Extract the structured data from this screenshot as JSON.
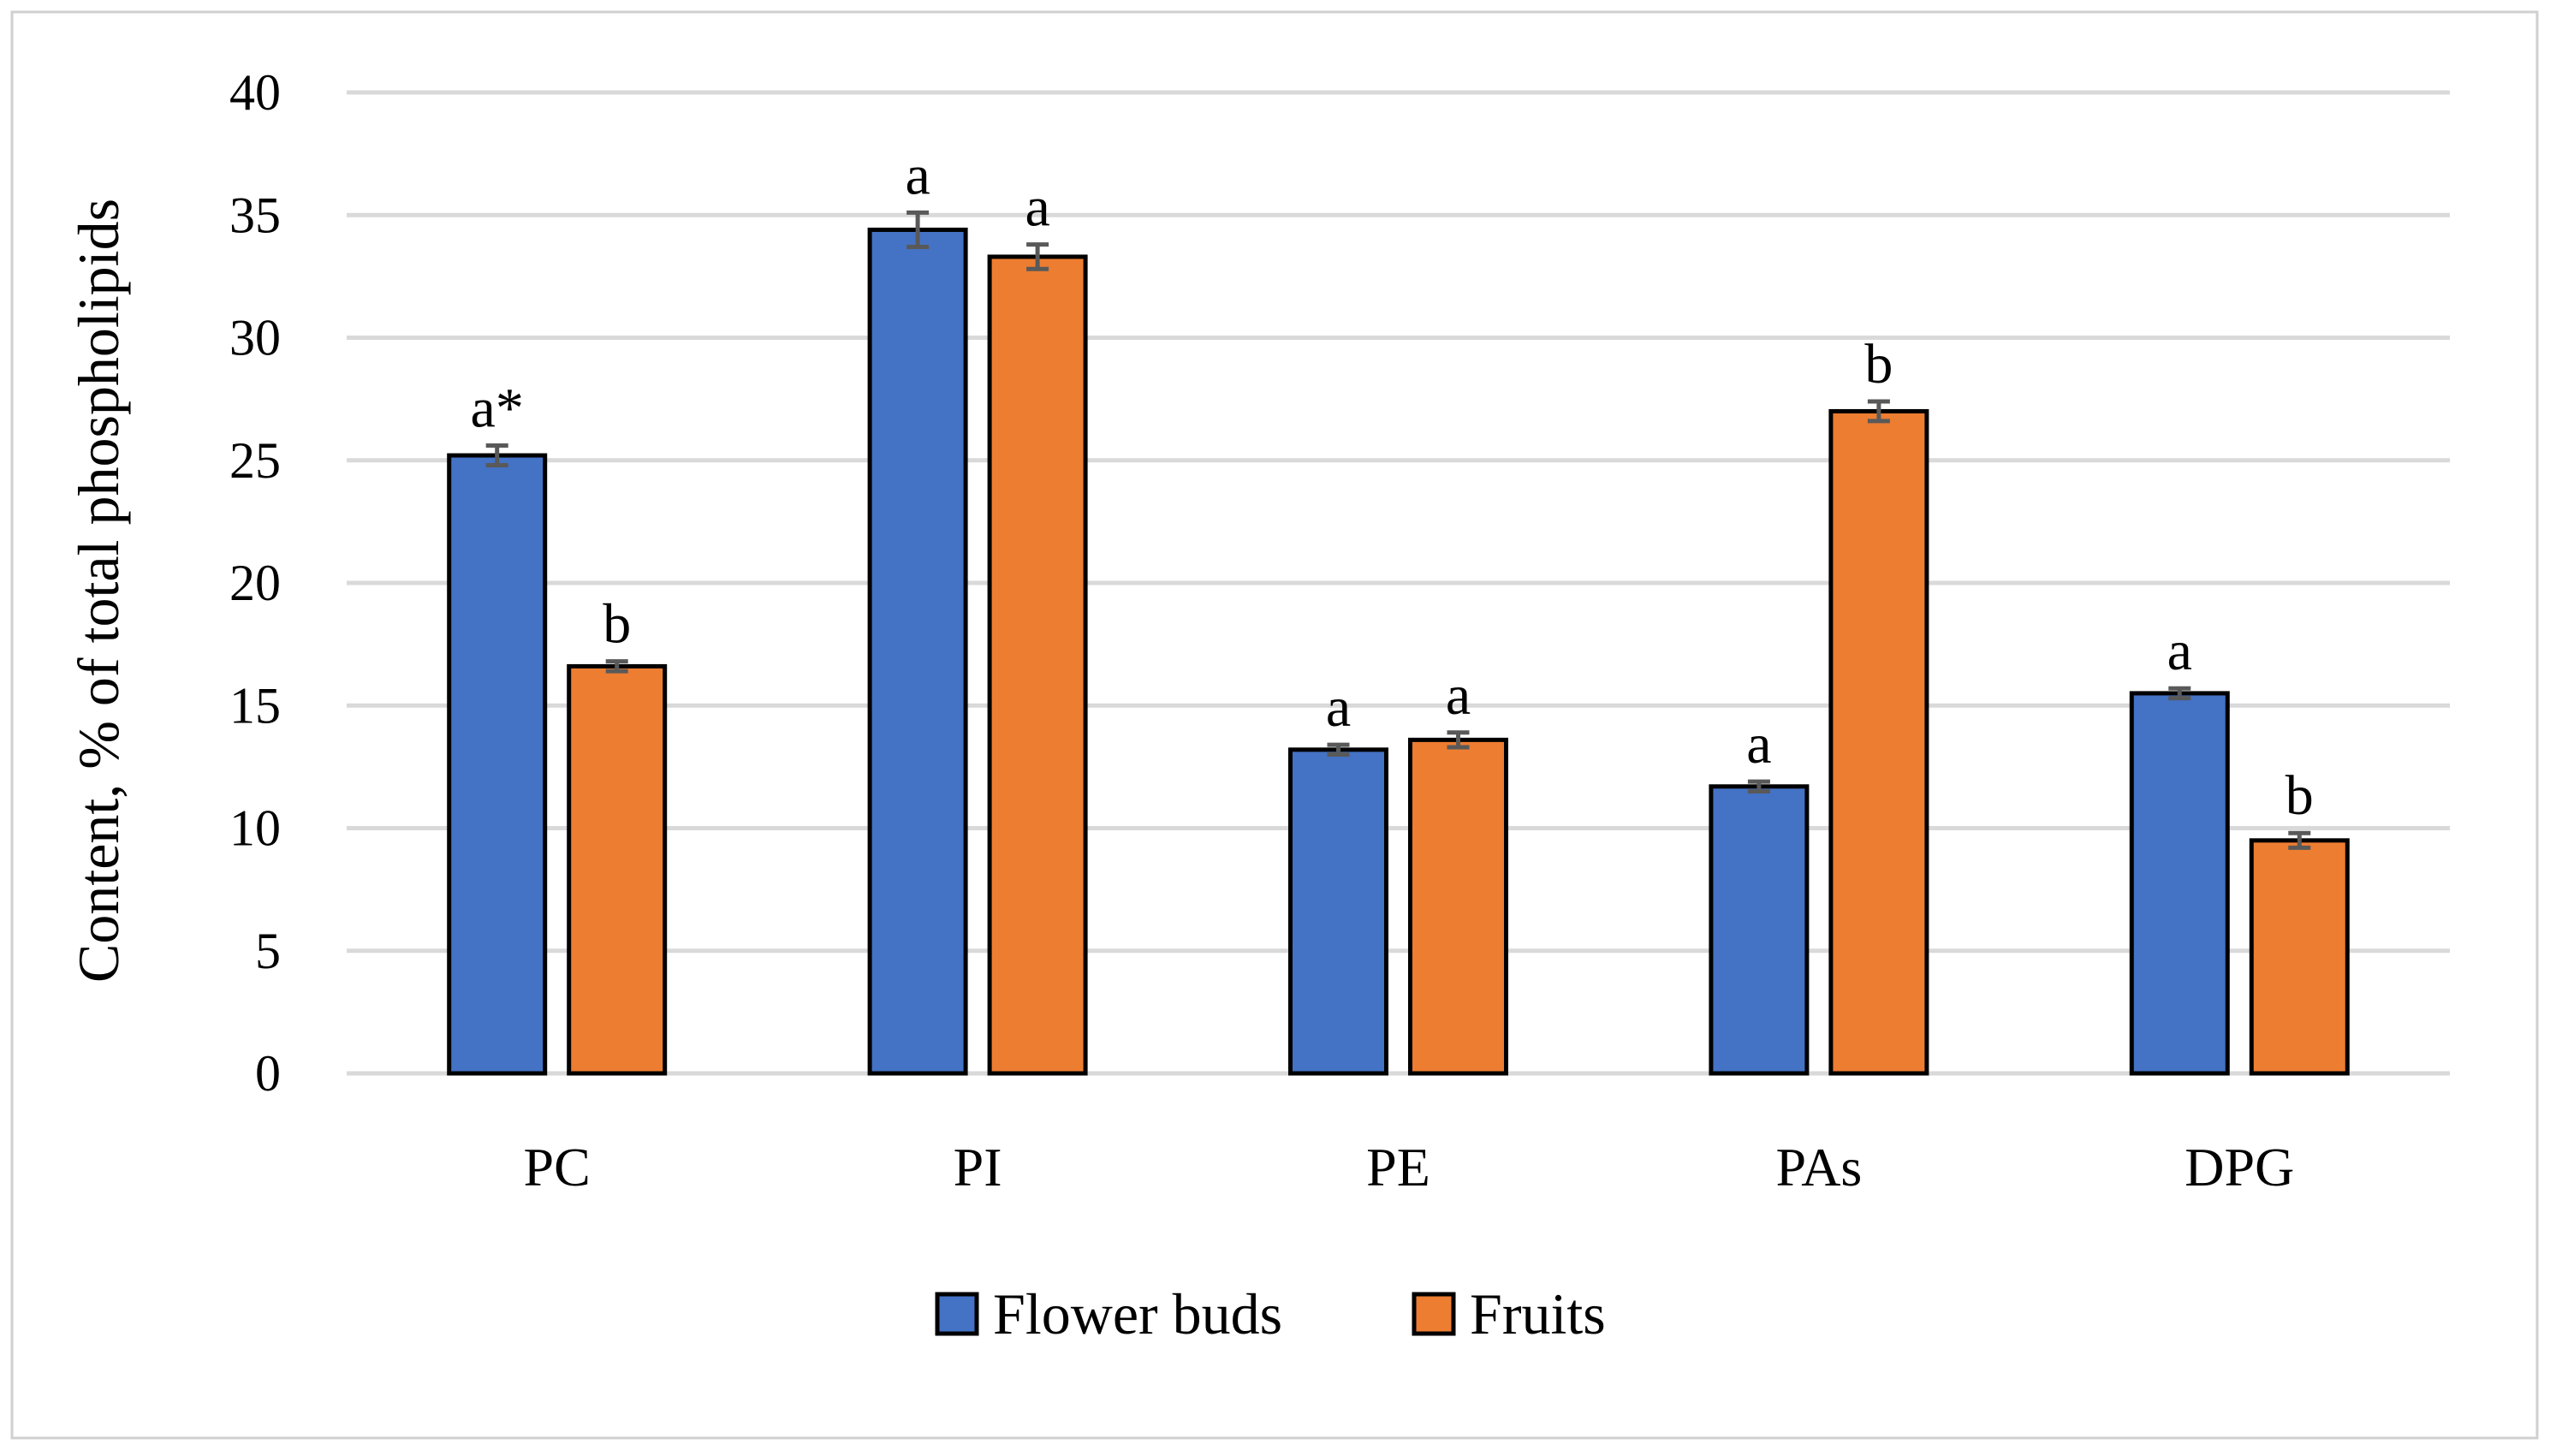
{
  "chart_data": {
    "type": "bar",
    "title": "",
    "xlabel": "",
    "ylabel": "Content, % of total phospholipids",
    "ylim": [
      0,
      40
    ],
    "yticks": [
      0,
      5,
      10,
      15,
      20,
      25,
      30,
      35,
      40
    ],
    "grid": true,
    "legend_position": "bottom",
    "categories": [
      "PC",
      "PI",
      "PE",
      "PAs",
      "DPG"
    ],
    "series": [
      {
        "name": "Flower buds",
        "color": "#4472C4",
        "values": [
          25.2,
          34.4,
          13.2,
          11.7,
          15.5
        ],
        "errors": [
          0.4,
          0.7,
          0.2,
          0.2,
          0.2
        ],
        "labels": [
          "a*",
          "a",
          "a",
          "a",
          "a"
        ]
      },
      {
        "name": "Fruits",
        "color": "#ED7D31",
        "values": [
          16.6,
          33.3,
          13.6,
          27.0,
          9.5
        ],
        "errors": [
          0.2,
          0.5,
          0.3,
          0.4,
          0.3
        ],
        "labels": [
          "b",
          "a",
          "a",
          "b",
          "b"
        ]
      }
    ]
  }
}
